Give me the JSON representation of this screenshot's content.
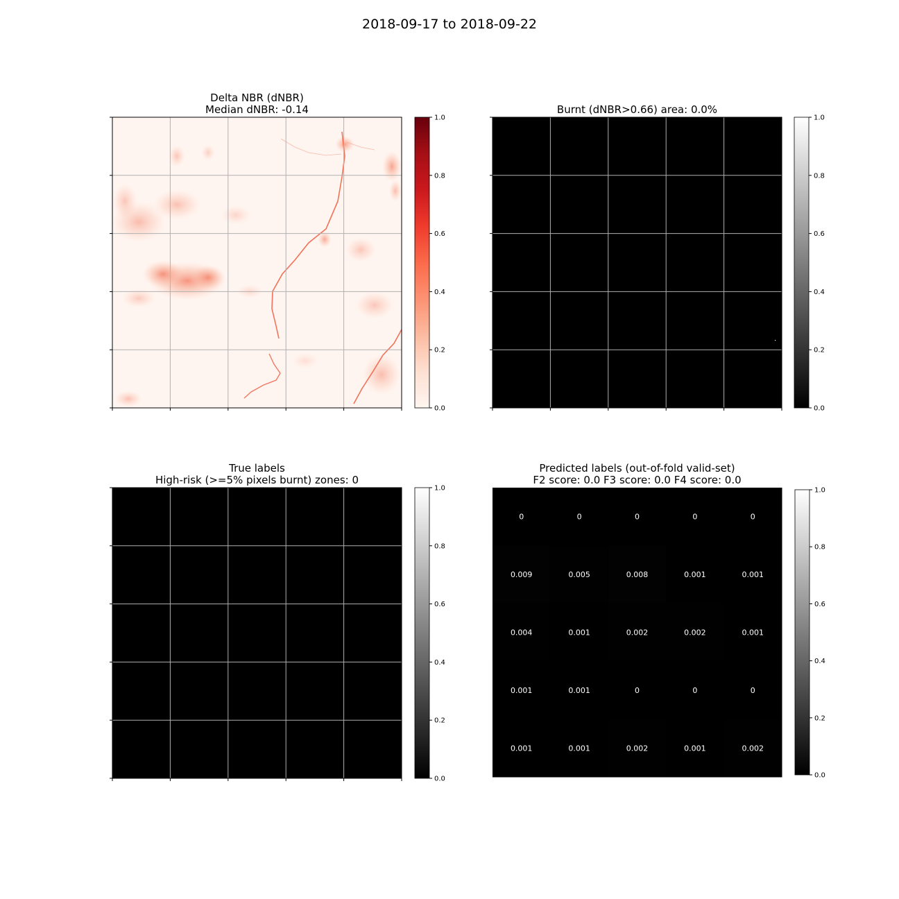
{
  "figure": {
    "title": "2018-09-17 to 2018-09-22"
  },
  "colors": {
    "reds_low": "#fff5f0",
    "reds_high": "#67000d",
    "grid": "#b0b0b0",
    "black": "#000000",
    "white": "#ffffff"
  },
  "chart_data": [
    {
      "type": "heatmap",
      "title": "Delta NBR (dNBR)",
      "subtitle": "Median dNBR: -0.14",
      "colormap": "Reds",
      "colorbar": {
        "range": [
          0,
          1
        ],
        "ticks": [
          "0.0",
          "0.2",
          "0.4",
          "0.6",
          "0.8",
          "1.0"
        ]
      },
      "grid": true,
      "statistic": {
        "name": "Median dNBR",
        "value": -0.14
      }
    },
    {
      "type": "heatmap",
      "title": "Burnt (dNBR>0.66) area: 0.0%",
      "colormap": "gray",
      "colorbar": {
        "range": [
          0,
          1
        ],
        "ticks": [
          "0.0",
          "0.2",
          "0.4",
          "0.6",
          "0.8",
          "1.0"
        ]
      },
      "grid": true,
      "statistic": {
        "name": "Burnt area percent",
        "value": 0.0
      }
    },
    {
      "type": "heatmap",
      "title": "True labels",
      "subtitle": "High-risk (>=5% pixels burnt) zones: 0",
      "colormap": "gray",
      "colorbar": {
        "range": [
          0,
          1
        ],
        "ticks": [
          "0.0",
          "0.2",
          "0.4",
          "0.6",
          "0.8",
          "1.0"
        ]
      },
      "grid": true,
      "values": [
        [
          0,
          0,
          0,
          0,
          0
        ],
        [
          0,
          0,
          0,
          0,
          0
        ],
        [
          0,
          0,
          0,
          0,
          0
        ],
        [
          0,
          0,
          0,
          0,
          0
        ],
        [
          0,
          0,
          0,
          0,
          0
        ]
      ]
    },
    {
      "type": "heatmap",
      "title": "Predicted labels (out-of-fold valid-set)",
      "subtitle": "F2 score: 0.0 F3 score: 0.0 F4 score: 0.0",
      "colormap": "gray",
      "colorbar": {
        "range": [
          0,
          1
        ],
        "ticks": [
          "0.0",
          "0.2",
          "0.4",
          "0.6",
          "0.8",
          "1.0"
        ]
      },
      "grid": false,
      "values": [
        [
          0,
          0,
          0,
          0,
          0
        ],
        [
          0.009,
          0.005,
          0.008,
          0.001,
          0.001
        ],
        [
          0.004,
          0.001,
          0.002,
          0.002,
          0.001
        ],
        [
          0.001,
          0.001,
          0,
          0,
          0
        ],
        [
          0.001,
          0.001,
          0.002,
          0.001,
          0.002
        ]
      ],
      "cell_labels": [
        [
          "0",
          "0",
          "0",
          "0",
          "0"
        ],
        [
          "0.009",
          "0.005",
          "0.008",
          "0.001",
          "0.001"
        ],
        [
          "0.004",
          "0.001",
          "0.002",
          "0.002",
          "0.001"
        ],
        [
          "0.001",
          "0.001",
          "0",
          "0",
          "0"
        ],
        [
          "0.001",
          "0.001",
          "0.002",
          "0.001",
          "0.002"
        ]
      ]
    }
  ]
}
